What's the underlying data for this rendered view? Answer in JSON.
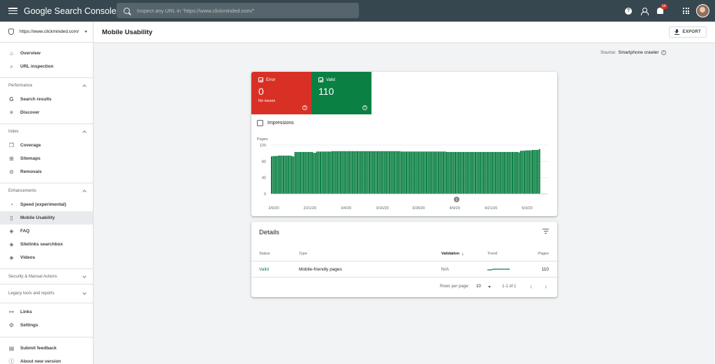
{
  "header": {
    "logo": "Google Search Console",
    "search_placeholder": "Inspect any URL in \"https://www.clickminded.com/\"",
    "notification_count": "14"
  },
  "sidebar": {
    "property": "https://www.clickminded.com/",
    "top_items": [
      {
        "label": "Overview",
        "icon": "home-icon"
      },
      {
        "label": "URL inspection",
        "icon": "search-icon"
      }
    ],
    "sections": {
      "performance": {
        "title": "Performance",
        "items": [
          "Search results",
          "Discover"
        ]
      },
      "index": {
        "title": "Index",
        "items": [
          "Coverage",
          "Sitemaps",
          "Removals"
        ]
      },
      "enhancements": {
        "title": "Enhancements",
        "items": [
          "Speed (experimental)",
          "Mobile Usability",
          "FAQ",
          "Sitelinks searchbox",
          "Videos"
        ]
      },
      "security": {
        "title": "Security & Manual Actions"
      },
      "legacy": {
        "title": "Legacy tools and reports"
      }
    },
    "bottom_items": [
      "Links",
      "Settings"
    ],
    "footer_items": [
      "Submit feedback",
      "About new version"
    ]
  },
  "main": {
    "title": "Mobile Usability",
    "export_label": "EXPORT",
    "source_label": "Source:",
    "source_value": "Smartphone crawler"
  },
  "tiles": {
    "error": {
      "label": "Error",
      "value": "0",
      "sub": "No issues",
      "color": "#d93025"
    },
    "valid": {
      "label": "Valid",
      "value": "110",
      "color": "#0b8043"
    }
  },
  "impressions_label": "Impressions",
  "chart_data": {
    "type": "bar",
    "ylabel": "Pages",
    "ylim": [
      0,
      120
    ],
    "yticks": [
      0,
      40,
      80,
      120
    ],
    "xtick_labels": [
      "2/9/20",
      "2/21/20",
      "3/4/20",
      "3/16/20",
      "3/28/20",
      "4/9/20",
      "4/21/20",
      "5/3/20"
    ],
    "annotation": "1",
    "color": "#0b8043",
    "values": [
      92,
      93,
      93,
      93,
      94,
      94,
      94,
      94,
      94,
      94,
      94,
      94,
      93,
      92,
      103,
      103,
      103,
      103,
      103,
      103,
      103,
      103,
      103,
      103,
      103,
      101,
      101,
      104,
      104,
      104,
      104,
      104,
      104,
      104,
      104,
      104,
      105,
      105,
      105,
      105,
      105,
      105,
      105,
      105,
      105,
      105,
      105,
      105,
      105,
      105,
      105,
      105,
      105,
      105,
      105,
      105,
      105,
      105,
      105,
      105,
      105,
      105,
      105,
      105,
      105,
      105,
      105,
      105,
      105,
      105,
      105,
      105,
      105,
      105,
      105,
      105,
      105,
      104,
      104,
      104,
      104,
      104,
      104,
      104,
      104,
      104,
      104,
      104,
      104,
      104,
      104,
      104,
      104,
      104,
      104,
      104,
      104,
      104,
      104,
      104,
      104,
      104,
      104,
      104,
      103,
      103,
      103,
      103,
      103,
      103,
      103,
      103,
      103,
      103,
      103,
      103,
      103,
      103,
      103,
      103,
      103,
      103,
      103,
      103,
      103,
      103,
      103,
      103,
      103,
      103,
      103,
      103,
      103,
      103,
      103,
      103,
      103,
      103,
      103,
      103,
      103,
      103,
      103,
      103,
      103,
      103,
      103,
      102,
      106,
      106,
      106,
      107,
      107,
      107,
      107,
      108,
      108,
      108,
      108,
      110
    ]
  },
  "details": {
    "title": "Details",
    "columns": {
      "status": "Status",
      "type": "Type",
      "validation": "Validation",
      "trend": "Trend",
      "pages": "Pages"
    },
    "row": {
      "status": "Valid",
      "type": "Mobile-friendly pages",
      "validation": "N/A",
      "pages": "110"
    },
    "pagination": {
      "rows_label": "Rows per page:",
      "rows_value": "10",
      "range": "1-1 of 1"
    }
  }
}
